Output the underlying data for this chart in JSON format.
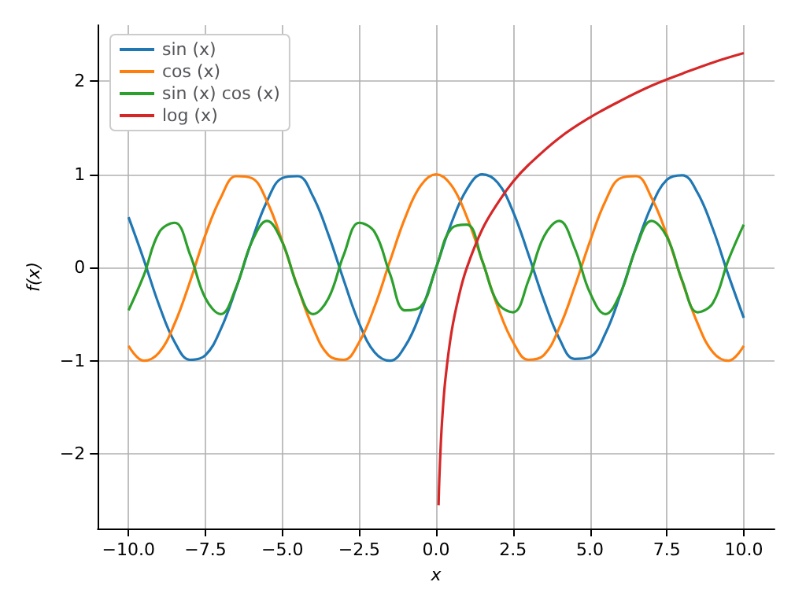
{
  "chart_data": {
    "type": "line",
    "xlabel": "x",
    "ylabel": "f(x)",
    "xlim": [
      -11,
      11
    ],
    "ylim": [
      -2.8,
      2.6
    ],
    "xticks": [
      {
        "value": -10,
        "label": "−10.0"
      },
      {
        "value": -7.5,
        "label": "−7.5"
      },
      {
        "value": -5,
        "label": "−5.0"
      },
      {
        "value": -2.5,
        "label": "−2.5"
      },
      {
        "value": 0,
        "label": "0.0"
      },
      {
        "value": 2.5,
        "label": "2.5"
      },
      {
        "value": 5,
        "label": "5.0"
      },
      {
        "value": 7.5,
        "label": "7.5"
      },
      {
        "value": 10,
        "label": "10.0"
      }
    ],
    "yticks": [
      {
        "value": -2,
        "label": "−2"
      },
      {
        "value": -1,
        "label": "−1"
      },
      0,
      1,
      2
    ],
    "grid": true,
    "legend": "top left",
    "marker": "none",
    "line_style": "solid",
    "x": [
      -10,
      -9.5,
      -9,
      -8.5,
      -8,
      -7.5,
      -7,
      -6.5,
      -6,
      -5.5,
      -5,
      -4.5,
      -4,
      -3.5,
      -3,
      -2.5,
      -2,
      -1.5,
      -1,
      -0.5,
      0,
      0.5,
      1,
      1.5,
      2,
      2.5,
      3,
      3.5,
      4,
      4.5,
      5,
      5.5,
      6,
      6.5,
      7,
      7.5,
      8,
      8.5,
      9,
      9.5,
      10
    ],
    "series": [
      {
        "name": "sin (x)",
        "color": "#1f77b4",
        "values": [
          0.54,
          0.08,
          -0.41,
          -0.8,
          -0.99,
          -0.94,
          -0.66,
          -0.22,
          0.28,
          0.71,
          0.96,
          0.98,
          0.76,
          0.35,
          -0.14,
          -0.6,
          -0.91,
          -1,
          -0.84,
          -0.48,
          0,
          0.48,
          0.84,
          1,
          0.91,
          0.6,
          0.14,
          -0.35,
          -0.76,
          -0.98,
          -0.96,
          -0.71,
          -0.28,
          0.22,
          0.66,
          0.94,
          0.99,
          0.8,
          0.41,
          -0.08,
          -0.54
        ]
      },
      {
        "name": "cos (x)",
        "color": "#ff7f0e",
        "values": [
          -0.84,
          -1,
          -0.91,
          -0.6,
          -0.15,
          0.35,
          0.75,
          0.98,
          0.96,
          0.71,
          0.28,
          -0.21,
          -0.65,
          -0.94,
          -0.99,
          -0.8,
          -0.42,
          0.07,
          0.54,
          0.88,
          1,
          0.88,
          0.54,
          0.07,
          -0.42,
          -0.8,
          -0.99,
          -0.94,
          -0.65,
          -0.21,
          0.28,
          0.71,
          0.96,
          0.98,
          0.75,
          0.35,
          -0.15,
          -0.6,
          -0.91,
          -1,
          -0.84
        ]
      },
      {
        "name": "sin (x) cos (x)",
        "color": "#2ca02c",
        "values": [
          -0.46,
          -0.08,
          0.38,
          0.48,
          0.14,
          -0.33,
          -0.5,
          -0.21,
          0.27,
          0.5,
          0.27,
          -0.21,
          -0.5,
          -0.33,
          0.14,
          0.48,
          0.38,
          -0.07,
          -0.46,
          -0.42,
          0,
          0.42,
          0.46,
          0.07,
          -0.38,
          -0.48,
          -0.14,
          0.33,
          0.5,
          0.21,
          -0.27,
          -0.5,
          -0.27,
          0.21,
          0.5,
          0.33,
          -0.14,
          -0.48,
          -0.38,
          0.08,
          0.46
        ]
      },
      {
        "name": "log (x)",
        "color": "#d62728",
        "x": [
          0.078,
          0.1,
          0.15,
          0.2,
          0.3,
          0.5,
          0.75,
          1,
          1.5,
          2,
          2.5,
          3,
          4,
          5,
          6,
          7,
          8,
          9,
          10
        ],
        "values": [
          -2.55,
          -2.3,
          -1.9,
          -1.61,
          -1.2,
          -0.69,
          -0.29,
          0,
          0.41,
          0.69,
          0.92,
          1.1,
          1.39,
          1.61,
          1.79,
          1.95,
          2.08,
          2.2,
          2.3
        ]
      }
    ]
  }
}
